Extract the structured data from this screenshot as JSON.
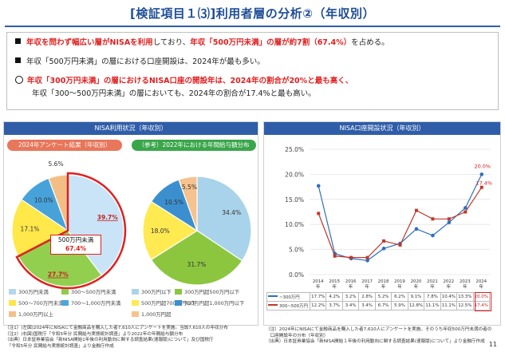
{
  "title": "[検証項目１⑶]利用者層の分析②（年収別）",
  "box": {
    "line1_a": "年収を問わず幅広い層がNISAを利用",
    "line1_b": "しており、",
    "line1_c": "年収「500万円未満」の層が約7割（67.4%）",
    "line1_d": "を占める。",
    "line2": "年収「500万円未満」の層における口座開設は、2024年が最も多い。",
    "line3": "年収「300万円未満」の層におけるNISA口座の開設年は、2024年の割合が20%と最も高く、",
    "line4": "年収「300～500万円未満」の層においても、2024年の割合が17.4%と最も高い。"
  },
  "left": {
    "header": "NISA利用状況（年収別）",
    "tag1": "2024年アンケート結果（年収別）",
    "tag2": "（参考）2022年における年間給与額分布",
    "callout_line1": "500万円未満",
    "callout_line2": "67.4%",
    "legend": [
      {
        "label": "300万円未満",
        "color": "#b4d6ee"
      },
      {
        "label": "300〜500万円未満",
        "color": "#90cc4c"
      },
      {
        "label": "300万円以下",
        "color": "#a9d3ea"
      },
      {
        "label": "300万円超500万円以下",
        "color": "#8cc63f"
      },
      {
        "label": "500〜700万円未満",
        "color": "#ffe54a"
      },
      {
        "label": "700〜1,000万円未満",
        "color": "#4ca6dd"
      },
      {
        "label": "500万円超700万円以下",
        "color": "#ffea52"
      },
      {
        "label": "700万円超1,000万円以下",
        "color": "#3b8fcf"
      },
      {
        "label": "1,000万円以上",
        "color": "#f3c08a"
      },
      {
        "label": "1,000万円超",
        "color": "#f6c28d"
      }
    ],
    "notes": [
      "（注1）(左図)2024年にNISAにて金融商品を購入した者7,610人にアンケートを実施。当該7,610人の年収分布",
      "（注2）(右図)国税庁「令和5年分 民間給与実態統計調査」より2022年の年間給与額分布",
      "（出典）日本証券業協会「新NISA開始1年後の利用動向に関する調査結果(速報版)について」及び国税庁",
      "　「令和5年分 民間給与実態統計調査」より金融庁作成"
    ]
  },
  "right": {
    "header": "NISA口座開設状況（年収別）",
    "notes": [
      "（注）2024年にNISAにて金融商品を購入した者7,610人にアンケートを実施。そのうち年収500万円未満の者の",
      "　口座開設年の分布（年収別）",
      "（出典）日本証券業協会「新NISA開始１年後の利用動向に関する調査結果(速報版)について」より金融庁作成"
    ]
  },
  "page_number": "11",
  "chart_data": [
    {
      "type": "pie",
      "title": "2024年アンケート結果（年収別）",
      "labels": [
        "300万円未満",
        "300〜500万円未満",
        "500〜700万円未満",
        "700〜1,000万円未満",
        "1,000万円以上"
      ],
      "values": [
        39.7,
        27.7,
        17.1,
        10.0,
        5.6
      ],
      "display": [
        "39.7%",
        "27.7%",
        "17.1%",
        "10.0%",
        "5.6%"
      ],
      "colors": [
        "#c9e4f6",
        "#93cf4f",
        "#ffe84a",
        "#47a2da",
        "#f3be86"
      ]
    },
    {
      "type": "pie",
      "title": "（参考）2022年における年間給与額分布",
      "labels": [
        "300万円以下",
        "300万円超500万円以下",
        "500万円超700万円以下",
        "700万円超1,000万円以下",
        "1,000万円超"
      ],
      "values": [
        34.4,
        31.7,
        18.0,
        10.5,
        5.5
      ],
      "display": [
        "34.4%",
        "31.7%",
        "18.0%",
        "10.5%",
        "5.5%"
      ],
      "colors": [
        "#a9d3ea",
        "#8cc63f",
        "#ffea52",
        "#3b8fcf",
        "#f6c28d"
      ]
    },
    {
      "type": "line",
      "x": [
        "2014年",
        "2015年",
        "2016年",
        "2017年",
        "2018年",
        "2019年",
        "2020年",
        "2021年",
        "2022年",
        "2023年",
        "2024年"
      ],
      "x_labels": [
        [
          "2014",
          "年"
        ],
        [
          "2015",
          "年"
        ],
        [
          "2016",
          "年"
        ],
        [
          "2017",
          "年"
        ],
        [
          "2018",
          "年"
        ],
        [
          "2019",
          "年"
        ],
        [
          "2020",
          "年"
        ],
        [
          "2021",
          "年"
        ],
        [
          "2022",
          "年"
        ],
        [
          "2023",
          "年"
        ],
        [
          "2024",
          "年"
        ]
      ],
      "ylim": [
        0,
        25
      ],
      "yticks": [
        "0.0%",
        "5.0%",
        "10.0%",
        "15.0%",
        "20.0%",
        "25.0%"
      ],
      "series": [
        {
          "name": "~300万円",
          "color": "#2e6fc0",
          "values": [
            17.7,
            4.2,
            3.2,
            2.8,
            5.2,
            6.2,
            9.1,
            7.8,
            10.4,
            13.3,
            20.0
          ],
          "display": [
            "17.7%",
            "4.2%",
            "3.2%",
            "2.8%",
            "5.2%",
            "6.2%",
            "9.1%",
            "7.8%",
            "10.4%",
            "13.3%",
            "20.0%"
          ]
        },
        {
          "name": "300~500万円",
          "color": "#c0392b",
          "values": [
            12.2,
            3.7,
            3.4,
            3.4,
            6.7,
            5.9,
            12.8,
            11.1,
            11.1,
            12.5,
            17.4
          ],
          "display": [
            "12.2%",
            "3.7%",
            "3.4%",
            "3.4%",
            "6.7%",
            "5.9%",
            "12.8%",
            "11.1%",
            "11.1%",
            "12.5%",
            "17.4%"
          ]
        }
      ],
      "end_labels": [
        "20.0%",
        "17.4%"
      ]
    }
  ]
}
